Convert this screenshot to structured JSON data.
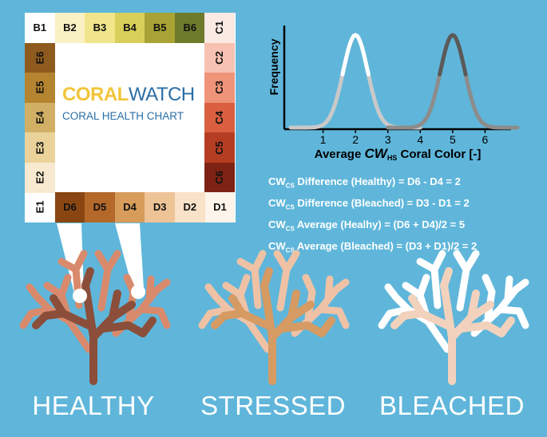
{
  "card": {
    "brand_coral": "CORAL",
    "brand_watch": "WATCH",
    "subtitle": "CORAL HEALTH CHART",
    "top_row": [
      {
        "label": "B1",
        "color": "#ffffff"
      },
      {
        "label": "B2",
        "color": "#f9f1c4"
      },
      {
        "label": "B3",
        "color": "#f1e58c"
      },
      {
        "label": "B4",
        "color": "#d8cf5a"
      },
      {
        "label": "B5",
        "color": "#a8a334"
      },
      {
        "label": "B6",
        "color": "#6e7a2c"
      }
    ],
    "right_col": [
      {
        "label": "C1",
        "color": "#fbe9e3"
      },
      {
        "label": "C2",
        "color": "#f7c2b2"
      },
      {
        "label": "C3",
        "color": "#ef9379"
      },
      {
        "label": "C4",
        "color": "#d95f40"
      },
      {
        "label": "C5",
        "color": "#b43d22"
      },
      {
        "label": "C6",
        "color": "#7e2314"
      }
    ],
    "bottom_row": [
      {
        "label": "E1",
        "color": "#ffffff"
      },
      {
        "label": "D6",
        "color": "#8a4612"
      },
      {
        "label": "D5",
        "color": "#b4682a"
      },
      {
        "label": "D4",
        "color": "#d79c5a"
      },
      {
        "label": "D3",
        "color": "#eec497"
      },
      {
        "label": "D2",
        "color": "#f8e2c8"
      },
      {
        "label": "D1",
        "color": "#fdf4ea"
      }
    ],
    "left_col": [
      {
        "label": "E6",
        "color": "#8f5a1e"
      },
      {
        "label": "E5",
        "color": "#b48430"
      },
      {
        "label": "E4",
        "color": "#d1b065"
      },
      {
        "label": "E3",
        "color": "#ead39a"
      },
      {
        "label": "E2",
        "color": "#f7ead0"
      }
    ]
  },
  "graph": {
    "ylabel": "Frequency",
    "xlabel_pre": "Average ",
    "xlabel_cw": "CW",
    "xlabel_sub": "HS",
    "xlabel_post": " Coral Color [-]",
    "ticks": [
      "1",
      "2",
      "3",
      "4",
      "5",
      "6"
    ]
  },
  "chart_data": {
    "type": "line",
    "xlim": [
      0,
      7
    ],
    "x_ticks": [
      1,
      2,
      3,
      4,
      5,
      6
    ],
    "series": [
      {
        "peak_x": 2,
        "color_top": "#ffffff",
        "color_bottom": "#c9c9c9"
      },
      {
        "peak_x": 5,
        "color_top": "#5a5a5a",
        "color_bottom": "#8c8c8c"
      }
    ]
  },
  "equations": [
    {
      "pre": "CW",
      "sub": "CS",
      "text": " Difference (Healthy) = D6 - D4 = 2"
    },
    {
      "pre": "CW",
      "sub": "CS",
      "text": " Difference (Bleached) = D3 - D1 = 2"
    },
    {
      "pre": "CW",
      "sub": "CS",
      "text": " Average (Healhy) = (D6 + D4)/2 = 5"
    },
    {
      "pre": "CW",
      "sub": "CS",
      "text": " Average (Bleached) = (D3 + D1)/2 = 2"
    }
  ],
  "captions": {
    "healthy": "HEALTHY",
    "stressed": "STRESSED",
    "bleached": "BLEACHED"
  },
  "colors": {
    "healthy_light": "#d98a6c",
    "healthy_dark": "#8a4e3a",
    "stressed_light": "#efc2a6",
    "stressed_dark": "#d69a63",
    "bleached_light": "#ffffff",
    "bleached_dark": "#f2d2bd"
  }
}
